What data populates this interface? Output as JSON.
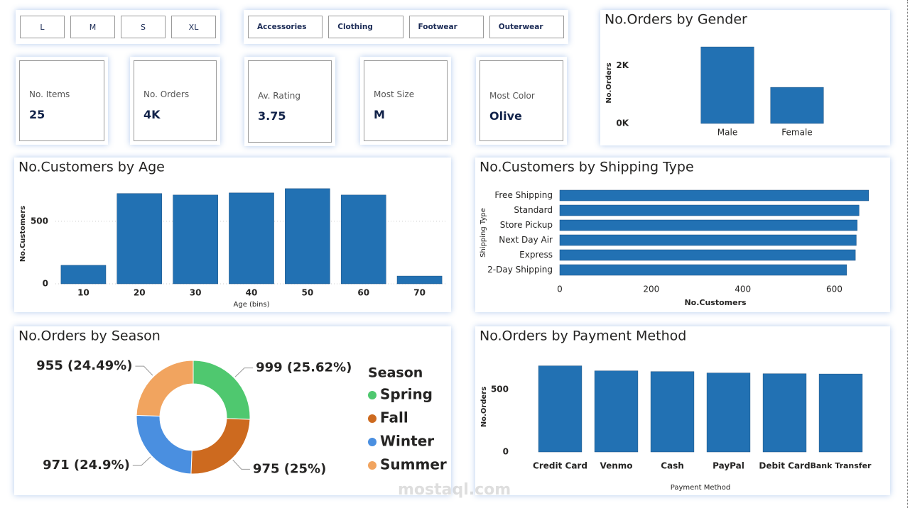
{
  "size_slicer": [
    "L",
    "M",
    "S",
    "XL"
  ],
  "category_slicer": [
    "Accessories",
    "Clothing",
    "Footwear",
    "Outerwear"
  ],
  "cards": [
    {
      "label": "No. Items",
      "value": 25
    },
    {
      "label": "No. Orders",
      "value": "4K"
    },
    {
      "label": "Av. Rating",
      "value": 3.75
    },
    {
      "label": "Most Size",
      "value": "M"
    },
    {
      "label": "Most Color",
      "value": "Olive"
    }
  ],
  "chart_data": [
    {
      "type": "bar",
      "title": "No.Orders by Gender",
      "ylabel": "No.Orders",
      "categories": [
        "Male",
        "Female"
      ],
      "values": [
        2650,
        1250
      ],
      "color": "#2271b3",
      "ylim": [
        0,
        2800
      ],
      "yticks": [
        {
          "value": 0,
          "label": "0K"
        },
        {
          "value": 2000,
          "label": "2K"
        }
      ],
      "grid": false
    },
    {
      "type": "bar",
      "title": "No.Customers by Age",
      "ylabel": "No.Customers",
      "xlabel": "Age (bins)",
      "categories": [
        "10",
        "20",
        "30",
        "40",
        "50",
        "60",
        "70"
      ],
      "values": [
        148,
        722,
        710,
        727,
        761,
        710,
        62
      ],
      "color": "#2271b3",
      "ylim": [
        0,
        800
      ],
      "yticks": [
        0,
        500
      ],
      "grid": true
    },
    {
      "type": "hbar",
      "title": "No.Customers by Shipping Type",
      "ylabel": "Shipping Type",
      "xlabel": "No.Customers",
      "categories": [
        "Free Shipping",
        "Standard",
        "Store Pickup",
        "Next Day Air",
        "Express",
        "2-Day Shipping"
      ],
      "values": [
        675,
        654,
        650,
        648,
        646,
        627
      ],
      "color": "#2271b3",
      "xlim": [
        0,
        680
      ],
      "xticks": [
        0,
        200,
        400,
        600
      ],
      "grid": false
    },
    {
      "type": "donut",
      "title": "No.Orders by Season",
      "legend_title": "Season",
      "legend": "right",
      "categories": [
        "Spring",
        "Fall",
        "Winter",
        "Summer"
      ],
      "values": [
        999,
        975,
        971,
        955
      ],
      "value_labels": [
        "999 (25.62%)",
        "975 (25%)",
        "971 (24.9%)",
        "955 (24.49%)"
      ],
      "colors": [
        "#4fc86f",
        "#cd6a1f",
        "#4a8fe0",
        "#f1a45f"
      ]
    },
    {
      "type": "bar",
      "title": "No.Orders by Payment Method",
      "ylabel": "No.Orders",
      "xlabel": "Payment Method",
      "categories": [
        "Credit Card",
        "Venmo",
        "Cash",
        "PayPal",
        "Debit Card",
        "Bank Transfer"
      ],
      "values": [
        688,
        648,
        642,
        631,
        625,
        623
      ],
      "color": "#2271b3",
      "ylim": [
        0,
        720
      ],
      "yticks": [
        0,
        500
      ],
      "grid": false
    }
  ],
  "watermark": "mostaql.com"
}
